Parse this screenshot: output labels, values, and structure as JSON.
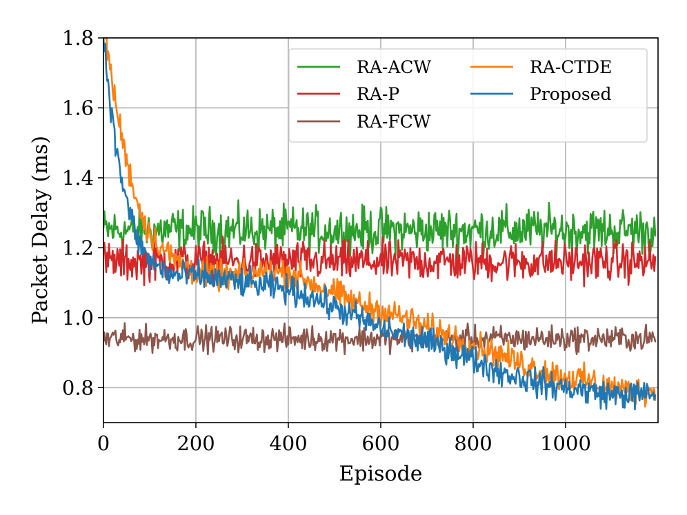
{
  "chart_data": {
    "type": "line",
    "title": "",
    "xlabel": "Episode",
    "ylabel": "Packet Delay (ms)",
    "xlim": [
      0,
      1200
    ],
    "ylim": [
      0.7,
      1.8
    ],
    "xticks": [
      0,
      200,
      400,
      600,
      800,
      1000
    ],
    "yticks": [
      0.8,
      1.0,
      1.2,
      1.4,
      1.6,
      1.8
    ],
    "xtick_labels": [
      "0",
      "200",
      "400",
      "600",
      "800",
      "1000"
    ],
    "ytick_labels": [
      "0.8",
      "1.0",
      "1.2",
      "1.4",
      "1.6",
      "1.8"
    ],
    "grid": true,
    "legend_position": "top-right",
    "legend_columns": 2,
    "x": [
      0,
      25,
      50,
      75,
      100,
      150,
      200,
      250,
      300,
      350,
      400,
      450,
      500,
      550,
      600,
      650,
      700,
      750,
      800,
      850,
      900,
      950,
      1000,
      1050,
      1100,
      1150,
      1195
    ],
    "series": [
      {
        "name": "RA-ACW",
        "color": "#2ca02c",
        "values": [
          1.25,
          1.25,
          1.25,
          1.25,
          1.25,
          1.25,
          1.25,
          1.25,
          1.25,
          1.25,
          1.25,
          1.25,
          1.25,
          1.25,
          1.25,
          1.25,
          1.25,
          1.25,
          1.25,
          1.25,
          1.25,
          1.25,
          1.25,
          1.25,
          1.25,
          1.25,
          1.25
        ],
        "noise_amplitude": 0.04
      },
      {
        "name": "RA-P",
        "color": "#d62728",
        "values": [
          1.16,
          1.16,
          1.16,
          1.16,
          1.16,
          1.16,
          1.16,
          1.16,
          1.16,
          1.16,
          1.16,
          1.16,
          1.16,
          1.16,
          1.16,
          1.16,
          1.16,
          1.16,
          1.16,
          1.16,
          1.16,
          1.16,
          1.16,
          1.16,
          1.16,
          1.16,
          1.16
        ],
        "noise_amplitude": 0.035
      },
      {
        "name": "RA-FCW",
        "color": "#8c564b",
        "values": [
          0.94,
          0.94,
          0.94,
          0.94,
          0.94,
          0.94,
          0.94,
          0.94,
          0.94,
          0.94,
          0.94,
          0.94,
          0.94,
          0.94,
          0.94,
          0.94,
          0.94,
          0.94,
          0.94,
          0.94,
          0.94,
          0.94,
          0.94,
          0.94,
          0.94,
          0.94,
          0.94
        ],
        "noise_amplitude": 0.022
      },
      {
        "name": "RA-CTDE",
        "color": "#ff7f0e",
        "values": [
          1.85,
          1.62,
          1.45,
          1.32,
          1.24,
          1.17,
          1.13,
          1.12,
          1.12,
          1.13,
          1.13,
          1.1,
          1.07,
          1.04,
          1.02,
          1.0,
          0.97,
          0.95,
          0.92,
          0.9,
          0.87,
          0.85,
          0.83,
          0.82,
          0.8,
          0.79,
          0.79
        ],
        "noise_amplitude": 0.025
      },
      {
        "name": "Proposed",
        "color": "#1f77b4",
        "values": [
          1.8,
          1.5,
          1.33,
          1.22,
          1.16,
          1.12,
          1.12,
          1.11,
          1.1,
          1.09,
          1.08,
          1.06,
          1.03,
          1.0,
          0.97,
          0.95,
          0.93,
          0.91,
          0.88,
          0.85,
          0.83,
          0.81,
          0.8,
          0.79,
          0.78,
          0.78,
          0.78
        ],
        "noise_amplitude": 0.025
      }
    ]
  }
}
